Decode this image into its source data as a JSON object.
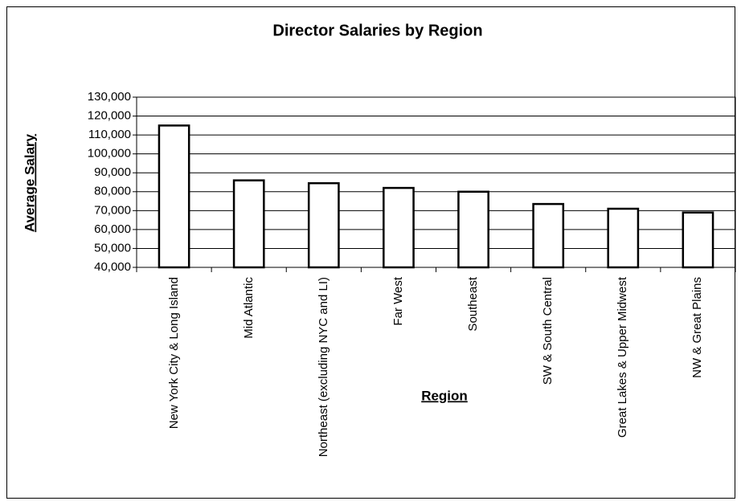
{
  "chart_data": {
    "type": "bar",
    "title": "Director Salaries by Region",
    "x_label": "Region",
    "y_label": "Average Salary",
    "categories": [
      "New York City & Long Island",
      "Mid Atlantic",
      "Northeast (excluding NYC and LI)",
      "Far West",
      "Southeast",
      "SW & South Central",
      "Great Lakes & Upper Midwest",
      "NW & Great Plains"
    ],
    "values": [
      115000,
      86000,
      84500,
      82000,
      80000,
      73500,
      71000,
      69000
    ],
    "color": "#ffffff",
    "ylim": [
      40000,
      130000
    ],
    "yticks": [
      {
        "value": 40000,
        "label": "40,000"
      },
      {
        "value": 50000,
        "label": "50,000"
      },
      {
        "value": 60000,
        "label": "60,000"
      },
      {
        "value": 70000,
        "label": "70,000"
      },
      {
        "value": 80000,
        "label": "80,000"
      },
      {
        "value": 90000,
        "label": "90,000"
      },
      {
        "value": 100000,
        "label": "100,000"
      },
      {
        "value": 110000,
        "label": "110,000"
      },
      {
        "value": 120000,
        "label": "120,000"
      },
      {
        "value": 130000,
        "label": "130,000"
      }
    ],
    "grid": true
  }
}
